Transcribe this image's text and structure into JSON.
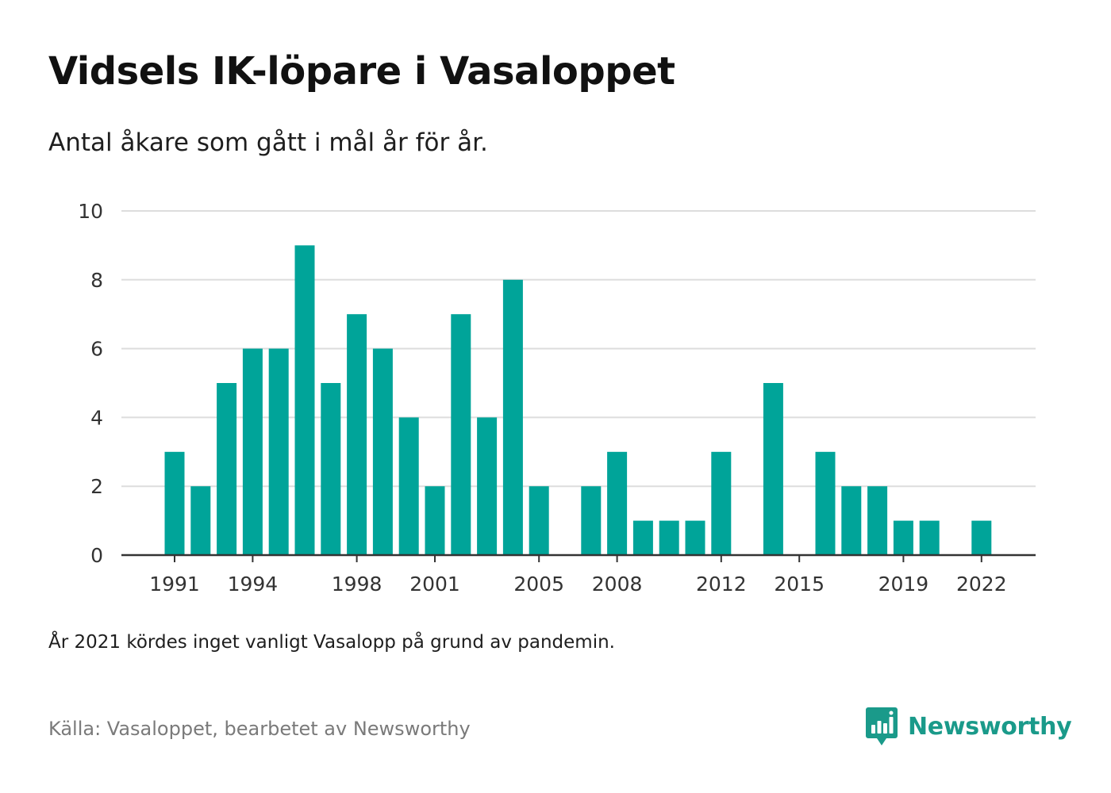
{
  "header": {
    "title": "Vidsels IK-löpare i Vasaloppet",
    "subtitle": "Antal åkare som gått i mål år för år."
  },
  "footer": {
    "note": "År 2021 kördes inget vanligt Vasalopp på grund av pandemin.",
    "source": "Källa: Vasaloppet, bearbetet av Newsworthy",
    "brand_name": "Newsworthy",
    "brand_icon": "newsworthy-logo-icon"
  },
  "colors": {
    "bar": "#00a499",
    "grid": "#dddddd",
    "axis": "#333333",
    "brand": "#1a9a8a"
  },
  "chart_data": {
    "type": "bar",
    "x": [
      1991,
      1992,
      1993,
      1994,
      1995,
      1996,
      1997,
      1998,
      1999,
      2000,
      2001,
      2002,
      2003,
      2004,
      2005,
      2006,
      2007,
      2008,
      2009,
      2010,
      2011,
      2012,
      2013,
      2014,
      2015,
      2016,
      2017,
      2018,
      2019,
      2020,
      2021,
      2022
    ],
    "values": [
      3,
      2,
      5,
      6,
      6,
      9,
      5,
      7,
      6,
      4,
      2,
      7,
      4,
      8,
      2,
      0,
      2,
      3,
      1,
      1,
      1,
      3,
      0,
      5,
      0,
      3,
      2,
      2,
      1,
      1,
      0,
      1
    ],
    "x_tick_labels": [
      "1991",
      "1994",
      "1998",
      "2001",
      "2005",
      "2008",
      "2012",
      "2015",
      "2019",
      "2022"
    ],
    "y_ticks": [
      0,
      2,
      4,
      6,
      8,
      10
    ],
    "ylim": [
      0,
      10
    ],
    "grid": true,
    "xlabel": "",
    "ylabel": ""
  }
}
